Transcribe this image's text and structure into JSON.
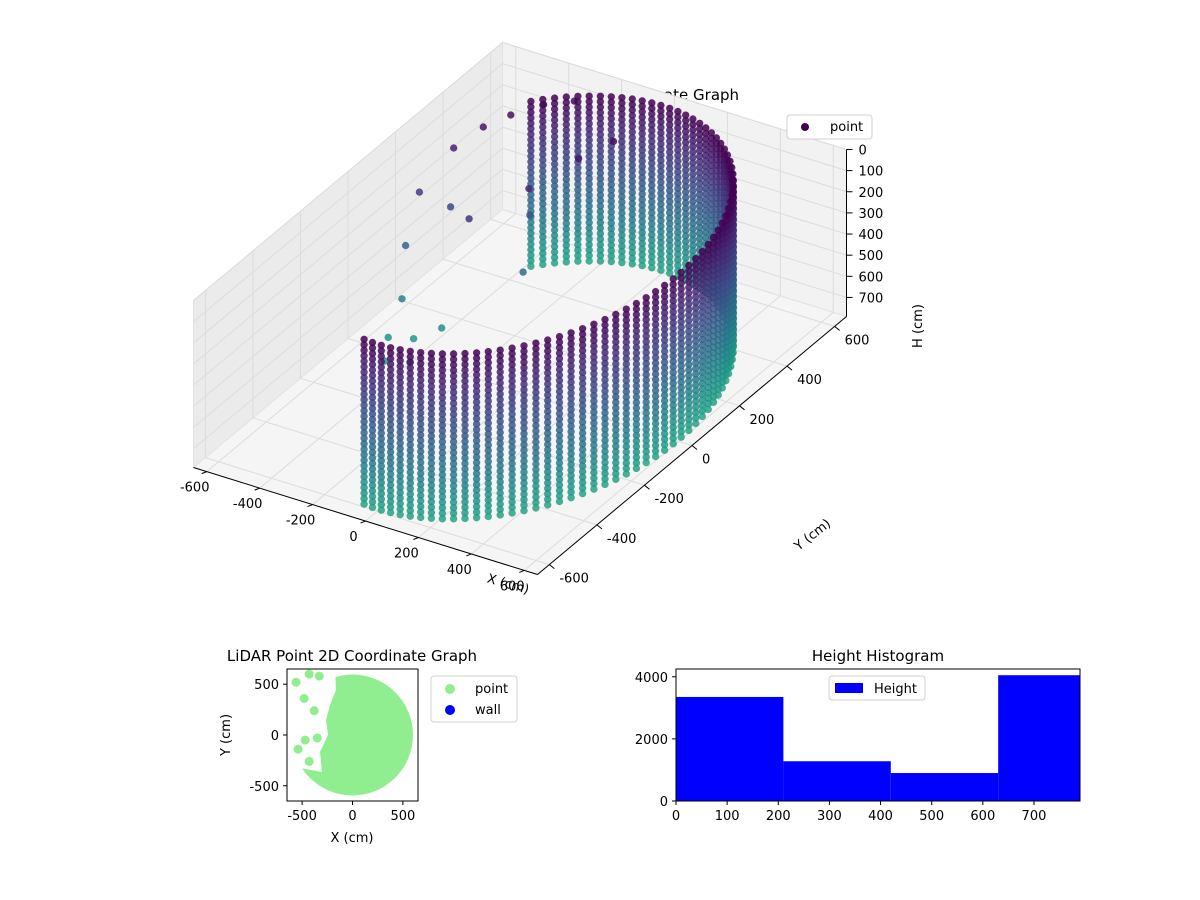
{
  "chart_data": [
    {
      "type": "scatter",
      "projection": "3d",
      "title": "LiDAR Point 3D Coordinate Graph",
      "xlabel": "X (cm)",
      "ylabel": "Y (cm)",
      "zlabel": "H (cm)",
      "xticks": [
        -600,
        -400,
        -200,
        0,
        200,
        400,
        600
      ],
      "yticks": [
        -600,
        -400,
        -200,
        0,
        200,
        400,
        600
      ],
      "zticks": [
        0,
        100,
        200,
        300,
        400,
        500,
        600,
        700
      ],
      "xlim": [
        -650,
        650
      ],
      "ylim": [
        -650,
        650
      ],
      "zlim": [
        790,
        0
      ],
      "z_axis_inverted": true,
      "colormap": "viridis",
      "legend": {
        "entries": [
          {
            "label": "point",
            "color": "#440154"
          }
        ],
        "position": "top-right"
      },
      "series": [
        {
          "name": "point",
          "shape": "cylindrical wall",
          "radius": 600,
          "height_range": [
            0,
            790
          ],
          "theta_range_deg": [
            -95,
            130
          ],
          "scattered_points": [
            {
              "x": -520,
              "y": 300,
              "z": 120
            },
            {
              "x": -480,
              "y": 380,
              "z": 80
            },
            {
              "x": -430,
              "y": 440,
              "z": 60
            },
            {
              "x": -360,
              "y": 500,
              "z": 40
            },
            {
              "x": -280,
              "y": 540,
              "z": 30
            },
            {
              "x": -560,
              "y": 200,
              "z": 250
            },
            {
              "x": -540,
              "y": 120,
              "z": 420
            },
            {
              "x": -500,
              "y": 60,
              "z": 600
            },
            {
              "x": -420,
              "y": 20,
              "z": 720
            },
            {
              "x": -380,
              "y": -40,
              "z": 760
            },
            {
              "x": -300,
              "y": 120,
              "z": 200
            },
            {
              "x": -200,
              "y": 260,
              "z": 150
            },
            {
              "x": -120,
              "y": 380,
              "z": 90
            },
            {
              "x": -60,
              "y": 460,
              "z": 60
            },
            {
              "x": -460,
              "y": 220,
              "z": 300
            },
            {
              "x": -250,
              "y": 320,
              "z": 350
            },
            {
              "x": -150,
              "y": 180,
              "z": 450
            },
            {
              "x": -480,
              "y": -20,
              "z": 700
            },
            {
              "x": -440,
              "y": -80,
              "z": 740
            },
            {
              "x": -350,
              "y": 60,
              "z": 680
            }
          ]
        }
      ]
    },
    {
      "type": "scatter",
      "title": "LiDAR Point 2D Coordinate Graph",
      "xlabel": "X (cm)",
      "ylabel": "Y (cm)",
      "xticks": [
        -500,
        0,
        500
      ],
      "yticks": [
        -500,
        0,
        500
      ],
      "xlim": [
        -650,
        650
      ],
      "ylim": [
        -650,
        650
      ],
      "legend": {
        "entries": [
          {
            "label": "point",
            "color": "#90ee90"
          },
          {
            "label": "wall",
            "color": "#0000ff"
          }
        ],
        "position": "outside-right"
      },
      "series": [
        {
          "name": "point",
          "shape": "filled disc",
          "radius": 600,
          "color": "#90ee90"
        },
        {
          "name": "wall",
          "color": "#0000ff"
        }
      ]
    },
    {
      "type": "bar",
      "title": "Height Histogram",
      "xticks": [
        0,
        100,
        200,
        300,
        400,
        500,
        600,
        700
      ],
      "yticks": [
        0,
        2000,
        4000
      ],
      "xlim": [
        0,
        790
      ],
      "ylim": [
        0,
        4250
      ],
      "legend": {
        "entries": [
          {
            "label": "Height",
            "color": "#0000ff"
          }
        ],
        "position": "upper-center"
      },
      "bins": [
        {
          "start": 0,
          "end": 210,
          "count": 3350
        },
        {
          "start": 210,
          "end": 420,
          "count": 1280
        },
        {
          "start": 420,
          "end": 630,
          "count": 900
        },
        {
          "start": 630,
          "end": 790,
          "count": 4050
        }
      ],
      "color": "#0000ff"
    }
  ]
}
